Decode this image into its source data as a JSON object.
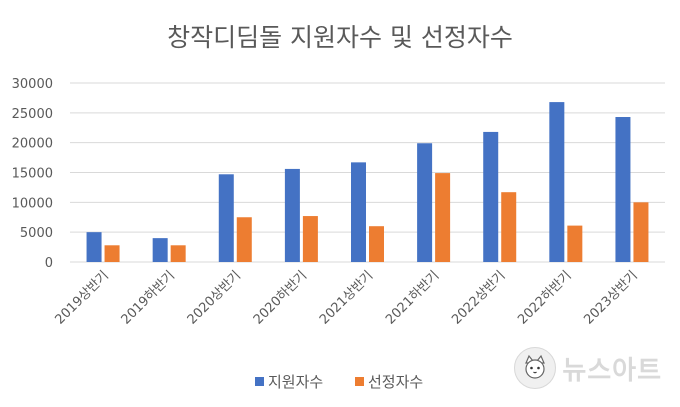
{
  "chart_data": {
    "type": "bar",
    "title": "창작디딤돌 지원자수 및 선정자수",
    "categories": [
      "2019상반기",
      "2019하반기",
      "2020상반기",
      "2020하반기",
      "2021상반기",
      "2021하반기",
      "2022상반기",
      "2022하반기",
      "2023상반기"
    ],
    "series": [
      {
        "name": "지원자수",
        "color": "#4472C4",
        "values": [
          5000,
          4000,
          14700,
          15600,
          16700,
          19900,
          21800,
          26800,
          24300
        ]
      },
      {
        "name": "선정자수",
        "color": "#ED7D31",
        "values": [
          2800,
          2800,
          7500,
          7700,
          6000,
          14900,
          11700,
          6100,
          10000
        ]
      }
    ],
    "ylim": [
      0,
      30000
    ],
    "yticks": [
      0,
      5000,
      10000,
      15000,
      20000,
      25000,
      30000
    ],
    "grid": true,
    "legend_position": "bottom"
  },
  "watermark": {
    "text": "뉴스아트",
    "icon": "cat-logo-icon"
  }
}
